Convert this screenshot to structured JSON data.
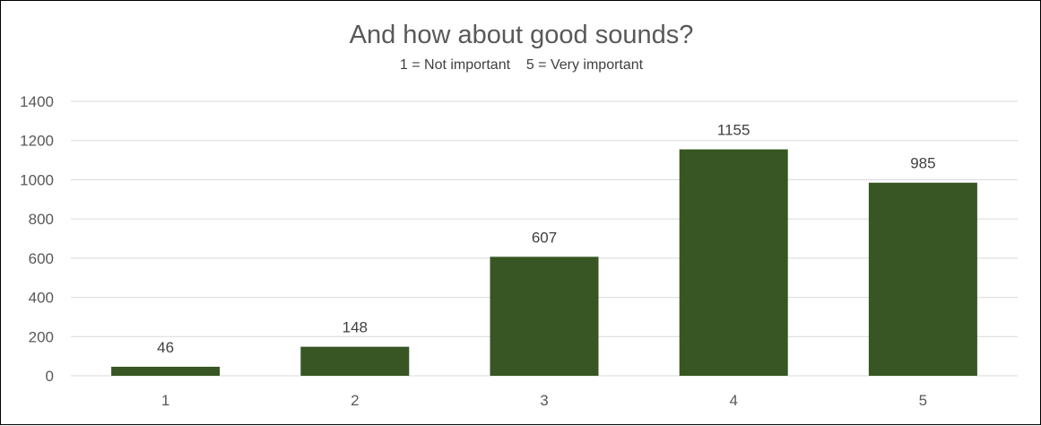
{
  "chart_data": {
    "type": "bar",
    "title": "And how about good sounds?",
    "subtitle": "1 = Not important    5 = Very important",
    "categories": [
      "1",
      "2",
      "3",
      "4",
      "5"
    ],
    "values": [
      46,
      148,
      607,
      1155,
      985
    ],
    "data_labels": [
      "46",
      "148",
      "607",
      "1155",
      "985"
    ],
    "ylim": [
      0,
      1400
    ],
    "yticks": [
      "0",
      "200",
      "400",
      "600",
      "800",
      "1000",
      "1200",
      "1400"
    ],
    "xlabel": "",
    "ylabel": "",
    "grid": true,
    "bar_color": "#375623",
    "gridline_color": "#d9d9d9"
  }
}
